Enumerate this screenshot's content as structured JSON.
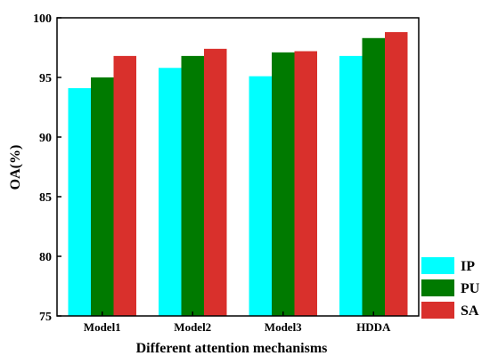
{
  "chart_data": {
    "type": "bar",
    "title": "",
    "xlabel": "Different attention mechanisms",
    "ylabel": "OA(%)",
    "categories": [
      "Model1",
      "Model2",
      "Model3",
      "HDDA"
    ],
    "ylim": [
      75,
      100
    ],
    "yticks": [
      "75",
      "80",
      "85",
      "90",
      "95",
      "100"
    ],
    "legend_position": "bottom-right, outside plot",
    "grid": false,
    "series": [
      {
        "name": "IP",
        "color": "#00FFFF",
        "values": [
          94.1,
          95.8,
          95.1,
          96.8
        ]
      },
      {
        "name": "PU",
        "color": "#007A00",
        "values": [
          95.0,
          96.8,
          97.1,
          98.3
        ]
      },
      {
        "name": "SA",
        "color": "#D9302C",
        "values": [
          96.8,
          97.4,
          97.2,
          98.8
        ]
      }
    ]
  }
}
